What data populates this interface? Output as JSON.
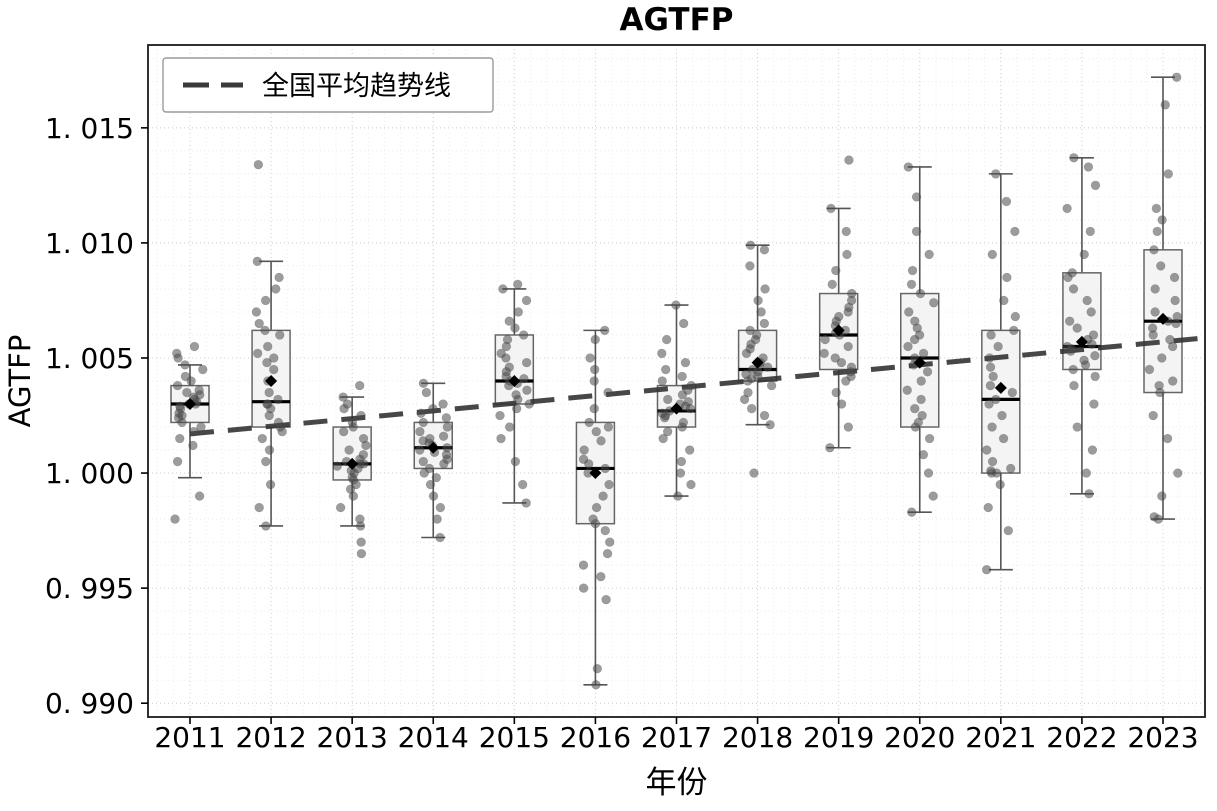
{
  "page": {
    "background": "#ffffff"
  },
  "chart_data": {
    "type": "box",
    "title": "AGTFP",
    "xlabel": "年份",
    "ylabel": "AGTFP",
    "legend": {
      "position": "upper-left",
      "entries": [
        {
          "label": "全国平均趋势线",
          "marker": "dashed-line",
          "color": "#3a3a3a"
        }
      ]
    },
    "grid": "dotted major+minor",
    "categories": [
      "2011",
      "2012",
      "2013",
      "2014",
      "2015",
      "2016",
      "2017",
      "2018",
      "2019",
      "2020",
      "2021",
      "2022",
      "2023"
    ],
    "ylim": [
      0.9894,
      1.0186
    ],
    "yticks": [
      {
        "value": 0.99,
        "label": "0. 990"
      },
      {
        "value": 0.995,
        "label": "0. 995"
      },
      {
        "value": 1.0,
        "label": "1. 000"
      },
      {
        "value": 1.005,
        "label": "1. 005"
      },
      {
        "value": 1.01,
        "label": "1. 010"
      },
      {
        "value": 1.015,
        "label": "1. 015"
      }
    ],
    "style": {
      "box_fill": "#f2f2f2",
      "box_edge": "#666666",
      "whisker": "#555555",
      "median": "#000000",
      "mean_marker": "#000000",
      "point": "#4a4a4a",
      "point_opacity": 0.55,
      "trend": "#333333"
    },
    "trend": {
      "label": "全国平均趋势线",
      "x": [
        2011,
        2023
      ],
      "y": [
        1.0017,
        1.0057
      ],
      "dashed": true
    },
    "series_stats": [
      {
        "year": "2011",
        "whisker_low": 0.9998,
        "q1": 1.0022,
        "median": 1.003,
        "q3": 1.0038,
        "whisker_high": 1.0047,
        "mean": 1.003,
        "points": [
          0.998,
          0.999,
          1.0005,
          1.0012,
          1.0015,
          1.0018,
          1.002,
          1.0022,
          1.0024,
          1.0025,
          1.0026,
          1.0028,
          1.0029,
          1.003,
          1.003,
          1.0031,
          1.0032,
          1.0033,
          1.0034,
          1.0035,
          1.0036,
          1.0038,
          1.004,
          1.0042,
          1.0045,
          1.0047,
          1.005,
          1.0052,
          1.0055
        ]
      },
      {
        "year": "2012",
        "whisker_low": 0.9977,
        "q1": 1.002,
        "median": 1.0031,
        "q3": 1.0062,
        "whisker_high": 1.0092,
        "mean": 1.004,
        "points": [
          0.9977,
          0.9985,
          0.9995,
          1.0005,
          1.001,
          1.0015,
          1.0018,
          1.002,
          1.0022,
          1.0025,
          1.0028,
          1.003,
          1.003,
          1.0032,
          1.0035,
          1.004,
          1.0045,
          1.0048,
          1.005,
          1.0052,
          1.0055,
          1.006,
          1.0062,
          1.0065,
          1.007,
          1.0075,
          1.008,
          1.0085,
          1.0092,
          1.0134
        ]
      },
      {
        "year": "2013",
        "whisker_low": 0.9977,
        "q1": 0.9997,
        "median": 1.0004,
        "q3": 1.002,
        "whisker_high": 1.0033,
        "mean": 1.0004,
        "points": [
          0.9965,
          0.997,
          0.9977,
          0.998,
          0.9985,
          0.999,
          0.9993,
          0.9995,
          0.9997,
          0.9998,
          1.0,
          1.0001,
          1.0002,
          1.0003,
          1.0004,
          1.0004,
          1.0005,
          1.0006,
          1.0008,
          1.001,
          1.0012,
          1.0015,
          1.0018,
          1.002,
          1.0022,
          1.0025,
          1.0028,
          1.003,
          1.0033,
          1.0038
        ]
      },
      {
        "year": "2014",
        "whisker_low": 0.9972,
        "q1": 1.0002,
        "median": 1.0011,
        "q3": 1.0022,
        "whisker_high": 1.0039,
        "mean": 1.0011,
        "points": [
          0.9972,
          0.998,
          0.9985,
          0.999,
          0.9995,
          0.9998,
          1.0,
          1.0002,
          1.0004,
          1.0005,
          1.0006,
          1.0008,
          1.0009,
          1.001,
          1.0011,
          1.0012,
          1.0013,
          1.0014,
          1.0015,
          1.0016,
          1.0018,
          1.002,
          1.0022,
          1.0024,
          1.0026,
          1.0028,
          1.003,
          1.0035,
          1.0039
        ]
      },
      {
        "year": "2015",
        "whisker_low": 0.9987,
        "q1": 1.003,
        "median": 1.004,
        "q3": 1.006,
        "whisker_high": 1.008,
        "mean": 1.004,
        "points": [
          0.9987,
          0.9995,
          1.0005,
          1.0015,
          1.002,
          1.0025,
          1.0028,
          1.003,
          1.0032,
          1.0034,
          1.0036,
          1.0038,
          1.0039,
          1.004,
          1.0041,
          1.0042,
          1.0044,
          1.0046,
          1.0048,
          1.005,
          1.0052,
          1.0055,
          1.0058,
          1.006,
          1.0063,
          1.0066,
          1.007,
          1.0075,
          1.008,
          1.0082
        ]
      },
      {
        "year": "2016",
        "whisker_low": 0.9908,
        "q1": 0.9978,
        "median": 1.0002,
        "q3": 1.0022,
        "whisker_high": 1.0062,
        "mean": 1.0,
        "points": [
          0.9908,
          0.9915,
          0.9945,
          0.995,
          0.9955,
          0.996,
          0.9965,
          0.997,
          0.9975,
          0.9978,
          0.998,
          0.9985,
          0.999,
          0.9995,
          1.0,
          1.0002,
          1.0004,
          1.0006,
          1.001,
          1.0014,
          1.0018,
          1.002,
          1.0022,
          1.0028,
          1.0035,
          1.004,
          1.0045,
          1.005,
          1.0058,
          1.0062
        ]
      },
      {
        "year": "2017",
        "whisker_low": 0.999,
        "q1": 1.002,
        "median": 1.0027,
        "q3": 1.0038,
        "whisker_high": 1.0073,
        "mean": 1.0028,
        "points": [
          0.999,
          0.9995,
          1.0,
          1.0005,
          1.001,
          1.0015,
          1.0018,
          1.002,
          1.0022,
          1.0024,
          1.0025,
          1.0026,
          1.0027,
          1.0028,
          1.0029,
          1.003,
          1.0031,
          1.0032,
          1.0034,
          1.0036,
          1.0038,
          1.004,
          1.0042,
          1.0045,
          1.0048,
          1.0052,
          1.0058,
          1.0065,
          1.0073
        ]
      },
      {
        "year": "2018",
        "whisker_low": 1.0021,
        "q1": 1.004,
        "median": 1.0045,
        "q3": 1.0062,
        "whisker_high": 1.0099,
        "mean": 1.0048,
        "points": [
          1.0,
          1.0021,
          1.0025,
          1.0028,
          1.0032,
          1.0035,
          1.0038,
          1.004,
          1.0041,
          1.0042,
          1.0043,
          1.0044,
          1.0045,
          1.0046,
          1.0047,
          1.0048,
          1.005,
          1.0052,
          1.0054,
          1.0056,
          1.0058,
          1.006,
          1.0062,
          1.0065,
          1.007,
          1.0075,
          1.008,
          1.009,
          1.0097,
          1.0099
        ]
      },
      {
        "year": "2019",
        "whisker_low": 1.0011,
        "q1": 1.0045,
        "median": 1.006,
        "q3": 1.0078,
        "whisker_high": 1.0115,
        "mean": 1.0062,
        "points": [
          1.0011,
          1.002,
          1.003,
          1.0035,
          1.004,
          1.0042,
          1.0044,
          1.0046,
          1.0048,
          1.005,
          1.0052,
          1.0055,
          1.0058,
          1.006,
          1.0061,
          1.0062,
          1.0064,
          1.0066,
          1.0068,
          1.007,
          1.0072,
          1.0075,
          1.0078,
          1.0082,
          1.0088,
          1.0095,
          1.0105,
          1.0115,
          1.0136
        ]
      },
      {
        "year": "2020",
        "whisker_low": 0.9983,
        "q1": 1.002,
        "median": 1.005,
        "q3": 1.0078,
        "whisker_high": 1.0133,
        "mean": 1.0048,
        "points": [
          0.9983,
          0.999,
          1.0,
          1.0008,
          1.0015,
          1.002,
          1.0022,
          1.0025,
          1.0028,
          1.0032,
          1.0036,
          1.004,
          1.0044,
          1.0047,
          1.005,
          1.0052,
          1.0055,
          1.0058,
          1.006,
          1.0063,
          1.0066,
          1.007,
          1.0074,
          1.0078,
          1.0082,
          1.0088,
          1.0095,
          1.0105,
          1.012,
          1.0133
        ]
      },
      {
        "year": "2021",
        "whisker_low": 0.9958,
        "q1": 1.0,
        "median": 1.0032,
        "q3": 1.0062,
        "whisker_high": 1.013,
        "mean": 1.0037,
        "points": [
          0.9958,
          0.9975,
          0.9985,
          0.9995,
          1.0,
          1.0,
          1.0001,
          1.0002,
          1.0005,
          1.001,
          1.0015,
          1.002,
          1.0025,
          1.003,
          1.0032,
          1.0035,
          1.0038,
          1.0042,
          1.0046,
          1.005,
          1.0055,
          1.006,
          1.0062,
          1.0068,
          1.0075,
          1.0085,
          1.0095,
          1.0105,
          1.0118,
          1.013
        ]
      },
      {
        "year": "2022",
        "whisker_low": 0.9991,
        "q1": 1.0045,
        "median": 1.0055,
        "q3": 1.0087,
        "whisker_high": 1.0137,
        "mean": 1.0057,
        "points": [
          0.9991,
          1.0,
          1.001,
          1.002,
          1.003,
          1.0038,
          1.0042,
          1.0045,
          1.0047,
          1.0049,
          1.0051,
          1.0053,
          1.0054,
          1.0055,
          1.0056,
          1.0058,
          1.006,
          1.0063,
          1.0066,
          1.007,
          1.0075,
          1.008,
          1.0085,
          1.0087,
          1.0095,
          1.0105,
          1.0115,
          1.0125,
          1.0133,
          1.0137
        ]
      },
      {
        "year": "2023",
        "whisker_low": 0.998,
        "q1": 1.0035,
        "median": 1.0066,
        "q3": 1.0097,
        "whisker_high": 1.0172,
        "mean": 1.0067,
        "points": [
          0.998,
          0.9981,
          0.999,
          1.0,
          1.0015,
          1.0025,
          1.0035,
          1.0038,
          1.004,
          1.0045,
          1.005,
          1.0055,
          1.0058,
          1.006,
          1.0063,
          1.0065,
          1.0066,
          1.0068,
          1.007,
          1.0075,
          1.008,
          1.0085,
          1.009,
          1.0097,
          1.0105,
          1.011,
          1.0115,
          1.013,
          1.016,
          1.0172
        ]
      }
    ]
  }
}
